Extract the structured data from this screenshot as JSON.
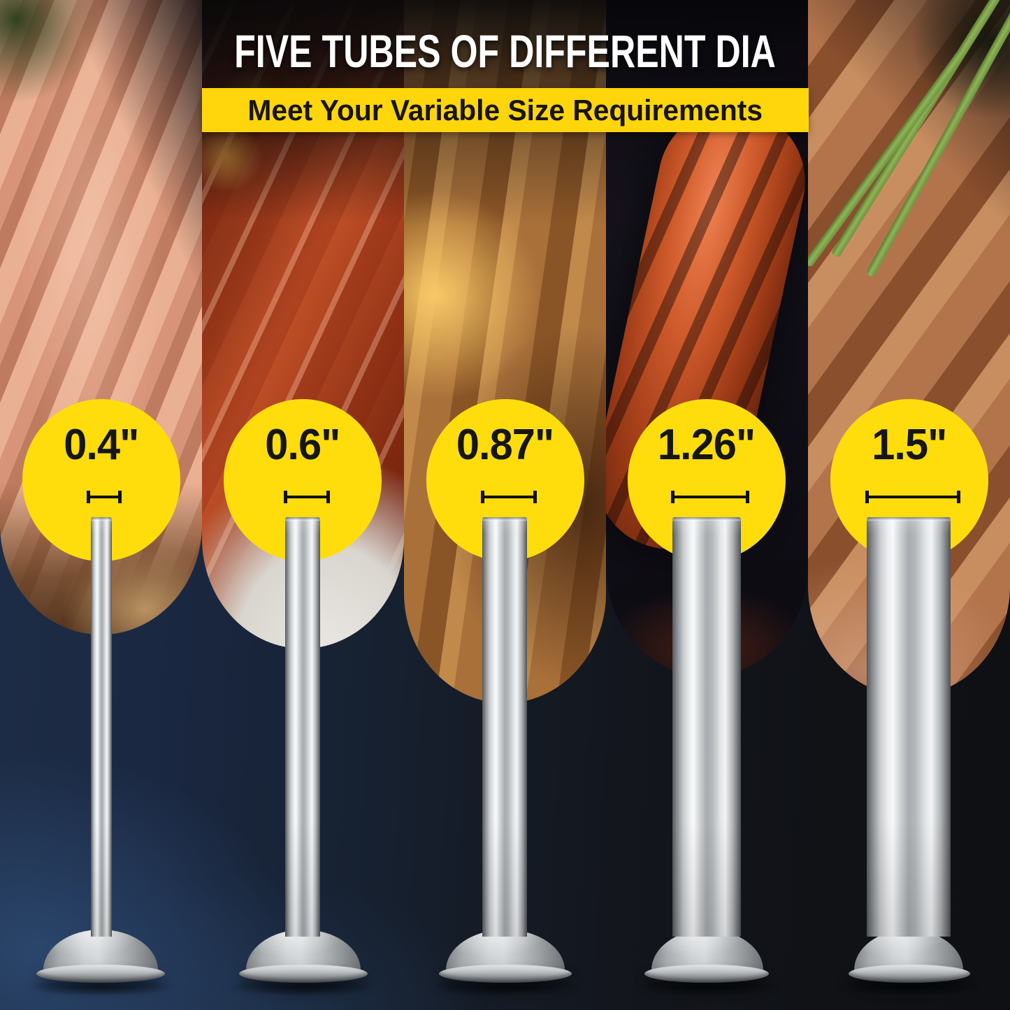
{
  "header": {
    "title": "FIVE TUBES OF DIFFERENT DIA",
    "subtitle": "Meet Your Variable Size Requirements"
  },
  "tubes": [
    {
      "diameter_label": "0.4\"",
      "diameter_inches": 0.4
    },
    {
      "diameter_label": "0.6\"",
      "diameter_inches": 0.6
    },
    {
      "diameter_label": "0.87\"",
      "diameter_inches": 0.87
    },
    {
      "diameter_label": "1.26\"",
      "diameter_inches": 1.26
    },
    {
      "diameter_label": "1.5\"",
      "diameter_inches": 1.5
    }
  ],
  "colors": {
    "banner_yellow": "#FFD60B",
    "badge_yellow": "#FFDD0D",
    "title_white": "#FFFFFF",
    "label_black": "#161616",
    "background_navy": "#1B2940",
    "background_black": "#101216",
    "steel_gray": "#C8CCCE"
  }
}
